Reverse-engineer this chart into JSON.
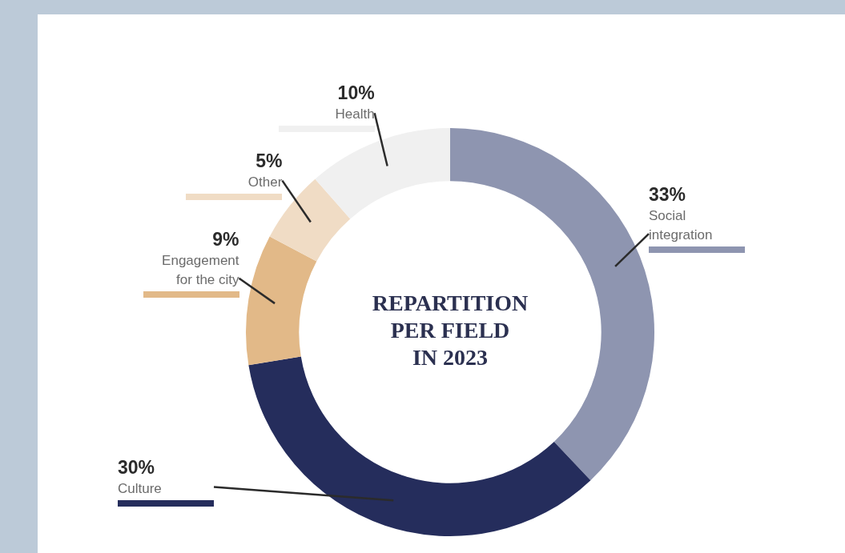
{
  "chart_data": {
    "type": "donut",
    "title": "REPARTITION PER FIELD IN 2023",
    "categories": [
      "Social integration",
      "Culture",
      "Engagement for the city",
      "Other",
      "Health"
    ],
    "values": [
      33,
      30,
      9,
      5,
      10
    ],
    "value_labels": [
      "33%",
      "30%",
      "9%",
      "5%",
      "10%"
    ],
    "colors": [
      "#8e95b0",
      "#252d5c",
      "#e2b988",
      "#f0dcc5",
      "#f0f0f0"
    ],
    "legend": false
  }
}
